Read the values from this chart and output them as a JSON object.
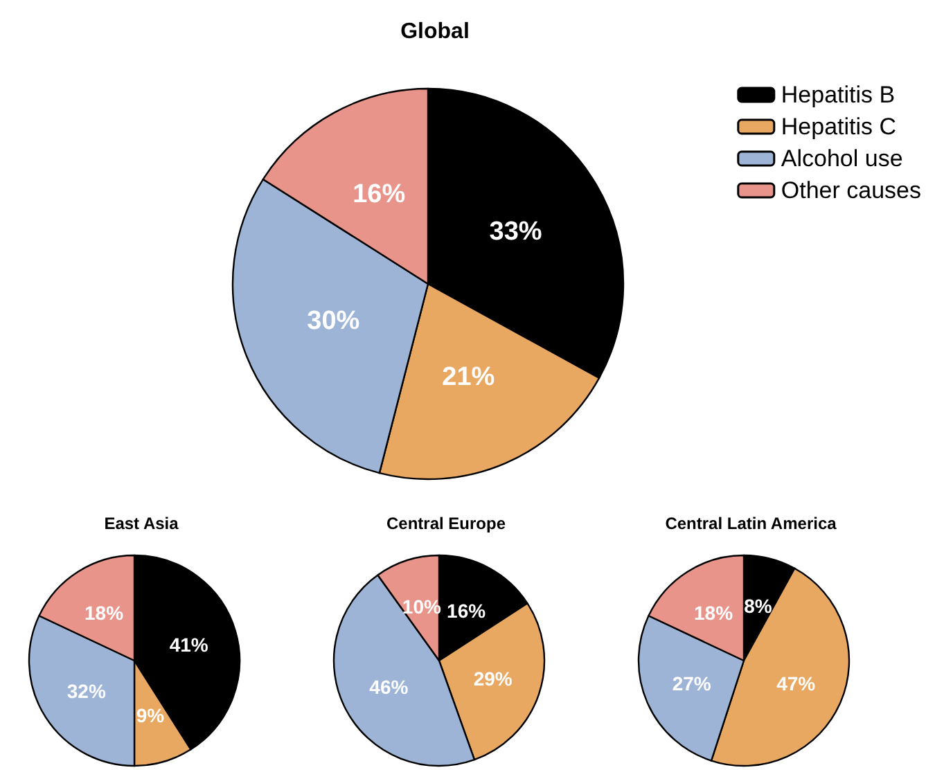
{
  "chart_data": [
    {
      "type": "pie",
      "title": "Global",
      "categories": [
        "Hepatitis B",
        "Hepatitis C",
        "Alcohol use",
        "Other causes"
      ],
      "values": [
        33,
        21,
        30,
        16
      ],
      "value_labels": [
        "33%",
        "21%",
        "30%",
        "16%"
      ],
      "colors": [
        "#000000",
        "#e8a862",
        "#9db4d6",
        "#e8948a"
      ],
      "legend": "top right"
    },
    {
      "type": "pie",
      "title": "East Asia",
      "categories": [
        null,
        null,
        null,
        null
      ],
      "values": [
        41,
        9,
        32,
        18
      ],
      "value_labels": [
        "41%",
        "9%",
        "32%",
        "18%"
      ],
      "colors": [
        "#000000",
        "#e8a862",
        "#9db4d6",
        "#e8948a"
      ]
    },
    {
      "type": "pie",
      "title": "Central Europe",
      "categories": [
        null,
        null,
        null,
        null
      ],
      "values": [
        16,
        29,
        46,
        10
      ],
      "value_labels": [
        "16%",
        "29%",
        "46%",
        "10%"
      ],
      "colors": [
        "#000000",
        "#e8a862",
        "#9db4d6",
        "#e8948a"
      ]
    },
    {
      "type": "pie",
      "title": "Central Latin America",
      "categories": [
        null,
        null,
        null,
        null
      ],
      "values": [
        8,
        47,
        27,
        18
      ],
      "value_labels": [
        "8%",
        "47%",
        "27%",
        "18%"
      ],
      "colors": [
        "#000000",
        "#e8a862",
        "#9db4d6",
        "#e8948a"
      ]
    }
  ]
}
